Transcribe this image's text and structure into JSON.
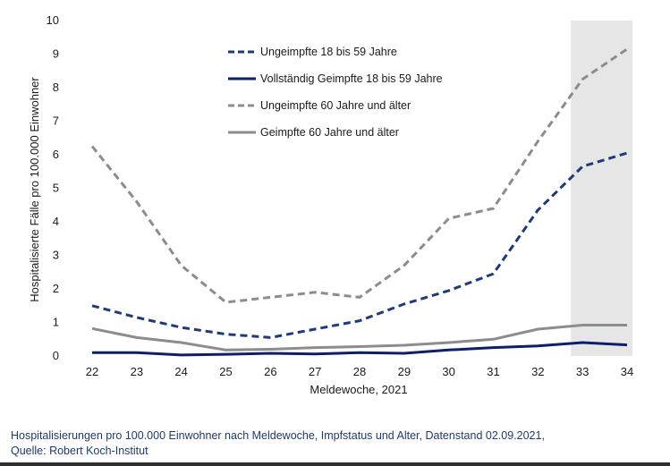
{
  "chart_data": {
    "type": "line",
    "xlabel": "Meldewoche, 2021",
    "ylabel": "Hospitalisierte Fälle pro 100.000 Einwohner",
    "x": [
      22,
      23,
      24,
      25,
      26,
      27,
      28,
      29,
      30,
      31,
      32,
      33,
      34
    ],
    "ylim": [
      0,
      10
    ],
    "yticks": [
      0,
      1,
      2,
      3,
      4,
      5,
      6,
      7,
      8,
      9,
      10
    ],
    "grid": false,
    "legend_position": "top-left",
    "highlight_range": [
      33,
      34
    ],
    "highlight_color": "#e6e6e6",
    "series": [
      {
        "name": "Ungeimpfte 18 bis 59 Jahre",
        "color": "#1f3a7a",
        "dash": "dashed",
        "values": [
          1.5,
          1.15,
          0.85,
          0.65,
          0.55,
          0.8,
          1.05,
          1.55,
          1.95,
          2.45,
          4.35,
          5.65,
          6.05
        ]
      },
      {
        "name": "Vollständig Geimpfte 18 bis 59 Jahre",
        "color": "#0d1f6b",
        "dash": "solid",
        "values": [
          0.1,
          0.1,
          0.03,
          0.05,
          0.08,
          0.06,
          0.1,
          0.08,
          0.18,
          0.25,
          0.3,
          0.4,
          0.33
        ]
      },
      {
        "name": "Ungeimpfte 60 Jahre und älter",
        "color": "#8c8c8c",
        "dash": "dashed",
        "values": [
          6.25,
          4.6,
          2.7,
          1.6,
          1.75,
          1.9,
          1.75,
          2.7,
          4.1,
          4.4,
          6.4,
          8.25,
          9.15
        ]
      },
      {
        "name": "Geimpfte 60 Jahre und älter",
        "color": "#8c8c8c",
        "dash": "solid",
        "values": [
          0.82,
          0.55,
          0.4,
          0.18,
          0.2,
          0.25,
          0.28,
          0.32,
          0.4,
          0.5,
          0.8,
          0.92,
          0.92
        ]
      }
    ]
  },
  "caption": {
    "line1": "Hospitalisierungen pro 100.000 Einwohner nach Meldewoche, Impfstatus und Alter, Datenstand 02.09.2021,",
    "line2": "Quelle: Robert Koch-Institut"
  }
}
